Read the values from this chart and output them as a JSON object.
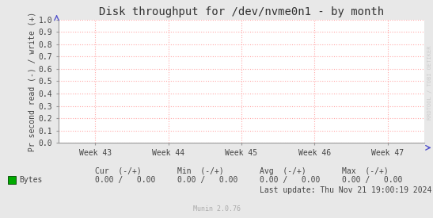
{
  "title": "Disk throughput for /dev/nvme0n1 - by month",
  "ylabel": "Pr second read (-) / write (+)",
  "background_color": "#e8e8e8",
  "plot_bg_color": "#ffffff",
  "grid_color": "#ffaaaa",
  "x_tick_labels": [
    "Week 43",
    "Week 44",
    "Week 45",
    "Week 46",
    "Week 47"
  ],
  "ylim": [
    0.0,
    1.0
  ],
  "yticks": [
    0.0,
    0.1,
    0.2,
    0.3,
    0.4,
    0.5,
    0.6,
    0.7,
    0.8,
    0.9,
    1.0
  ],
  "legend_label": "Bytes",
  "legend_color": "#00aa00",
  "cur_header": "Cur  (-/+)",
  "min_header": "Min  (-/+)",
  "avg_header": "Avg  (-/+)",
  "max_header": "Max  (-/+)",
  "cur_val": "0.00 /   0.00",
  "min_val": "0.00 /   0.00",
  "avg_val": "0.00 /   0.00",
  "max_val": "0.00 /   0.00",
  "last_update": "Last update: Thu Nov 21 19:00:19 2024",
  "munin_version": "Munin 2.0.76",
  "watermark": "RRDTOOL / TOBI OETIKER",
  "title_fontsize": 10,
  "label_fontsize": 7,
  "tick_fontsize": 7,
  "stats_fontsize": 7,
  "munin_fontsize": 6,
  "watermark_fontsize": 5
}
